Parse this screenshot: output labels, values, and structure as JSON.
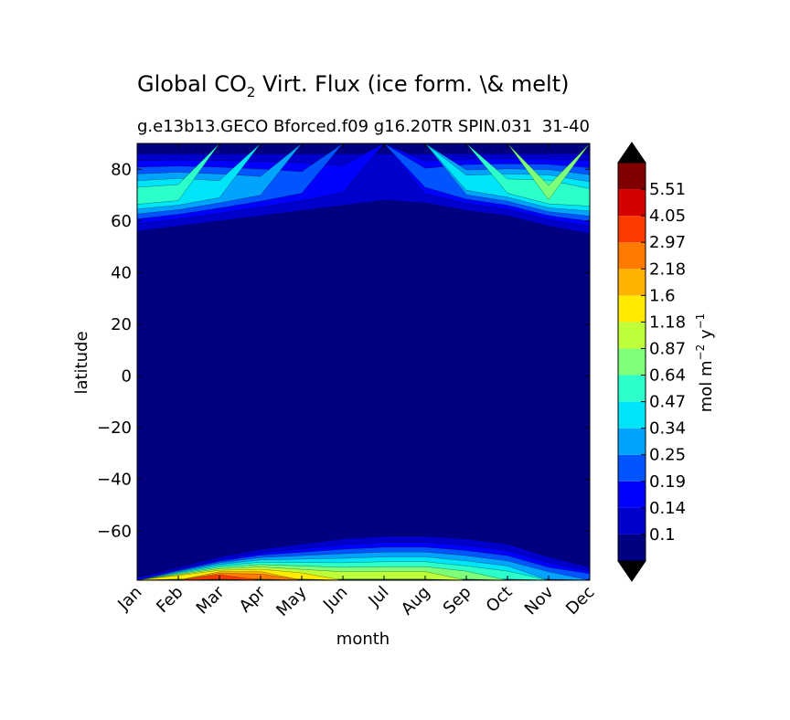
{
  "chart_data": {
    "type": "heatmap",
    "title": {
      "main": "Global CO",
      "subscript": "2",
      "rest": " Virt. Flux (ice form. \\& melt)"
    },
    "subtitle_left": "g.e13b13.GECO Bforced.f09 g16.20TR SPIN.031",
    "subtitle_right": "31-40",
    "xlabel": "month",
    "ylabel": "latitude",
    "x_categories": [
      "Jan",
      "Feb",
      "Mar",
      "Apr",
      "May",
      "Jun",
      "Jul",
      "Aug",
      "Sep",
      "Oct",
      "Nov",
      "Dec"
    ],
    "ylim": [
      -79,
      90
    ],
    "y_ticks": [
      "80",
      "60",
      "40",
      "20",
      "0",
      "−20",
      "−40",
      "−60"
    ],
    "y_tick_values": [
      80,
      60,
      40,
      20,
      0,
      -20,
      -40,
      -60
    ],
    "colorbar": {
      "label_main": "mol m",
      "label_exp1": "−2",
      "label_mid": " y",
      "label_exp2": "−1",
      "levels": [
        "0.1",
        "0.14",
        "0.19",
        "0.25",
        "0.34",
        "0.47",
        "0.64",
        "0.87",
        "1.18",
        "1.6",
        "2.18",
        "2.97",
        "4.05",
        "5.51"
      ],
      "colors": [
        "#000080",
        "#0000cd",
        "#0000ff",
        "#0055ff",
        "#00a4ff",
        "#00e4f8",
        "#2cffca",
        "#7dff7a",
        "#beff39",
        "#ffea00",
        "#ffb200",
        "#ff7b00",
        "#ff3a00",
        "#d40000",
        "#800000"
      ],
      "extend_colors": {
        "under": "#000000",
        "over": "#000000"
      }
    },
    "grid": false,
    "north_band": {
      "lat_range": [
        56,
        90
      ],
      "months": [
        "Jan",
        "Feb",
        "Mar",
        "Apr",
        "May",
        "Jun",
        "Jul",
        "Aug",
        "Sep",
        "Oct",
        "Nov",
        "Dec"
      ],
      "ice_edge_lat": [
        56,
        58,
        60,
        62,
        64,
        66,
        68,
        67,
        64,
        62,
        58,
        55
      ],
      "peak_level": [
        6,
        6,
        5,
        4,
        3,
        2,
        1,
        3,
        5,
        6,
        7,
        6
      ]
    },
    "south_band": {
      "lat_range": [
        -79,
        -60
      ],
      "months": [
        "Jan",
        "Feb",
        "Mar",
        "Apr",
        "May",
        "Jun",
        "Jul",
        "Aug",
        "Sep",
        "Oct",
        "Nov",
        "Dec"
      ],
      "ice_edge_lat": [
        -78,
        -74,
        -70,
        -67,
        -65,
        -63,
        -62,
        -62,
        -63,
        -65,
        -70,
        -74
      ],
      "peak_level": [
        2,
        9,
        12,
        11,
        9,
        8,
        8,
        8,
        7,
        6,
        4,
        3
      ]
    }
  }
}
